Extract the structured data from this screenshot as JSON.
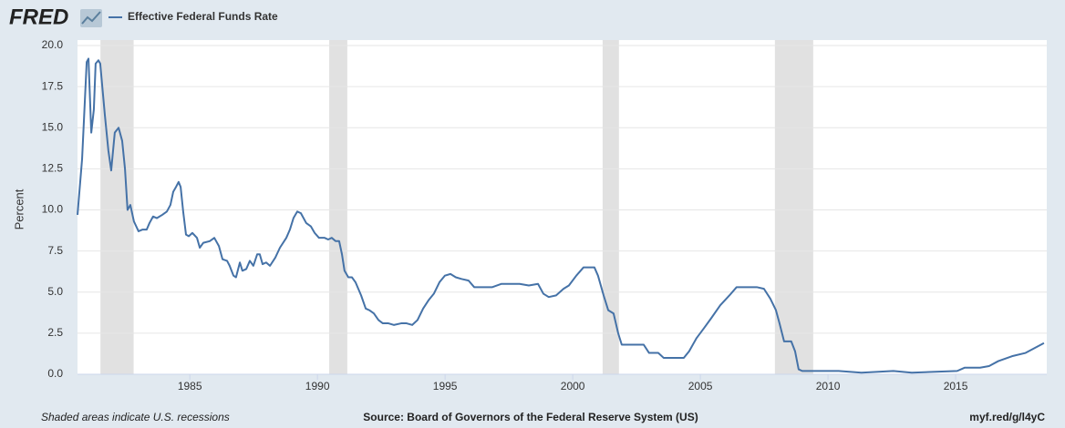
{
  "chart_data": {
    "type": "line",
    "logo": "FRED",
    "legend": "Effective Federal Funds Rate",
    "ylabel": "Percent",
    "note": "Shaded areas indicate U.S. recessions",
    "source": "Source: Board of Governors of the Federal Reserve System (US)",
    "link": "myf.red/g/l4yC",
    "xlim": [
      1980.6,
      2018.57
    ],
    "ylim": [
      0,
      20
    ],
    "xticks": [
      1985,
      1990,
      1995,
      2000,
      2005,
      2010,
      2015
    ],
    "yticks": [
      {
        "value": 0,
        "label": "0.0"
      },
      {
        "value": 2.5,
        "label": "2.5"
      },
      {
        "value": 5,
        "label": "5.0"
      },
      {
        "value": 7.5,
        "label": "7.5"
      },
      {
        "value": 10,
        "label": "10.0"
      },
      {
        "value": 12.5,
        "label": "12.5"
      },
      {
        "value": 15,
        "label": "15.0"
      },
      {
        "value": 17.5,
        "label": "17.5"
      },
      {
        "value": 20,
        "label": "20.0"
      }
    ],
    "grid": true,
    "recessions": [
      [
        1981.5,
        1982.8
      ],
      [
        1990.46,
        1991.17
      ],
      [
        2001.17,
        2001.81
      ],
      [
        2007.92,
        2009.42
      ]
    ],
    "recession_color": "#e1e1e1",
    "series": [
      {
        "name": "Effective Federal Funds Rate",
        "color": "#4572a7",
        "x": [
          1980.6,
          1980.78,
          1980.96,
          1981.03,
          1981.14,
          1981.24,
          1981.31,
          1981.42,
          1981.49,
          1981.67,
          1981.81,
          1981.92,
          1982.06,
          1982.21,
          1982.35,
          1982.46,
          1982.56,
          1982.67,
          1982.81,
          1982.99,
          1983.14,
          1983.31,
          1983.42,
          1983.56,
          1983.71,
          1983.92,
          1984.1,
          1984.24,
          1984.35,
          1984.46,
          1984.56,
          1984.64,
          1984.74,
          1984.85,
          1984.96,
          1985.1,
          1985.28,
          1985.39,
          1985.53,
          1985.78,
          1985.96,
          1986.14,
          1986.28,
          1986.46,
          1986.56,
          1986.71,
          1986.81,
          1986.96,
          1987.06,
          1987.21,
          1987.35,
          1987.49,
          1987.64,
          1987.74,
          1987.85,
          1987.99,
          1988.14,
          1988.35,
          1988.53,
          1988.78,
          1988.92,
          1989.06,
          1989.21,
          1989.35,
          1989.56,
          1989.74,
          1989.89,
          1990.06,
          1990.28,
          1990.42,
          1990.56,
          1990.71,
          1990.85,
          1990.96,
          1991.06,
          1991.21,
          1991.35,
          1991.49,
          1991.71,
          1991.89,
          1992.03,
          1992.21,
          1992.39,
          1992.56,
          1992.78,
          1992.99,
          1993.28,
          1993.49,
          1993.71,
          1993.92,
          1994.14,
          1994.35,
          1994.56,
          1994.78,
          1994.99,
          1995.21,
          1995.42,
          1995.64,
          1995.92,
          1996.14,
          1996.49,
          1996.85,
          1997.21,
          1997.56,
          1997.92,
          1998.28,
          1998.64,
          1998.85,
          1999.06,
          1999.35,
          1999.64,
          1999.85,
          2000.14,
          2000.42,
          2000.85,
          2000.99,
          2001.21,
          2001.39,
          2001.6,
          2001.78,
          2001.92,
          2002.21,
          2002.78,
          2002.99,
          2003.35,
          2003.56,
          2004.35,
          2004.56,
          2004.85,
          2005.14,
          2005.42,
          2005.78,
          2006.14,
          2006.42,
          2007.21,
          2007.49,
          2007.74,
          2007.96,
          2008.1,
          2008.28,
          2008.56,
          2008.71,
          2008.85,
          2008.99,
          2009.53,
          2010.42,
          2011.31,
          2012.56,
          2013.28,
          2015.06,
          2015.35,
          2015.96,
          2016.31,
          2016.67,
          2017.21,
          2017.74,
          2018.1,
          2018.46
        ],
        "values": [
          9.7,
          13.1,
          19.0,
          19.2,
          14.7,
          16.1,
          18.9,
          19.1,
          18.9,
          15.8,
          13.6,
          12.4,
          14.7,
          15.0,
          14.2,
          12.5,
          10.0,
          10.3,
          9.3,
          8.7,
          8.8,
          8.8,
          9.2,
          9.6,
          9.5,
          9.7,
          9.9,
          10.3,
          11.1,
          11.4,
          11.7,
          11.4,
          9.9,
          8.5,
          8.4,
          8.6,
          8.3,
          7.7,
          8.0,
          8.1,
          8.3,
          7.8,
          7.0,
          6.9,
          6.6,
          6.0,
          5.9,
          6.8,
          6.3,
          6.4,
          6.9,
          6.6,
          7.3,
          7.3,
          6.7,
          6.8,
          6.6,
          7.1,
          7.7,
          8.3,
          8.8,
          9.5,
          9.9,
          9.8,
          9.2,
          9.0,
          8.6,
          8.3,
          8.3,
          8.2,
          8.3,
          8.1,
          8.1,
          7.3,
          6.3,
          5.9,
          5.9,
          5.6,
          4.8,
          4.0,
          3.9,
          3.7,
          3.3,
          3.1,
          3.1,
          3.0,
          3.1,
          3.1,
          3.0,
          3.3,
          4.0,
          4.5,
          4.9,
          5.6,
          6.0,
          6.1,
          5.9,
          5.8,
          5.7,
          5.3,
          5.3,
          5.3,
          5.5,
          5.5,
          5.5,
          5.4,
          5.5,
          4.9,
          4.7,
          4.8,
          5.2,
          5.4,
          6.0,
          6.5,
          6.5,
          6.0,
          4.8,
          3.9,
          3.7,
          2.5,
          1.8,
          1.8,
          1.8,
          1.3,
          1.3,
          1.0,
          1.0,
          1.4,
          2.2,
          2.8,
          3.4,
          4.2,
          4.8,
          5.3,
          5.3,
          5.2,
          4.6,
          3.9,
          3.1,
          2.0,
          2.0,
          1.4,
          0.3,
          0.2,
          0.2,
          0.2,
          0.1,
          0.2,
          0.1,
          0.2,
          0.4,
          0.4,
          0.5,
          0.8,
          1.1,
          1.3,
          1.6,
          1.9
        ]
      }
    ]
  }
}
